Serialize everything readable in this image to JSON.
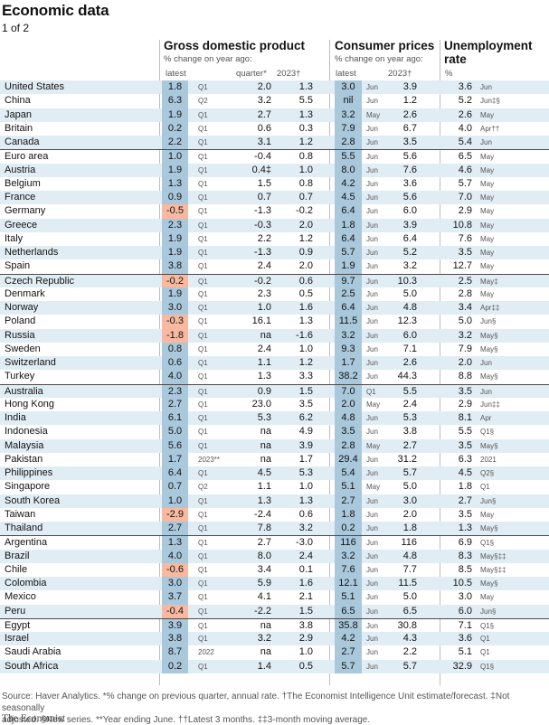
{
  "title": "Economic data",
  "page_indicator": "1 of 2",
  "headers": {
    "gdp": {
      "title": "Gross domestic product",
      "subtitle": "% change on year ago:",
      "col_latest": "latest",
      "col_quarter": "quarter*",
      "col_year": "2023†"
    },
    "cpi": {
      "title": "Consumer prices",
      "subtitle": "% change on year ago:",
      "col_latest": "latest",
      "col_year": "2023†"
    },
    "unemp": {
      "title": "Unemployment",
      "title2": "rate",
      "unit": "%"
    }
  },
  "rows": [
    {
      "country": "United States",
      "gdp": "1.8",
      "gdp_p": "Q1",
      "gdp_q": "2.0",
      "gdp_y": "1.3",
      "cp": "3.0",
      "cp_p": "Jun",
      "cp_y": "3.9",
      "un": "3.6",
      "un_p": "Jun",
      "neg": false
    },
    {
      "country": "China",
      "gdp": "6.3",
      "gdp_p": "Q2",
      "gdp_q": "3.2",
      "gdp_y": "5.5",
      "cp": "nil",
      "cp_p": "Jun",
      "cp_y": "1.2",
      "un": "5.2",
      "un_p": "Jun‡§",
      "neg": false
    },
    {
      "country": "Japan",
      "gdp": "1.9",
      "gdp_p": "Q1",
      "gdp_q": "2.7",
      "gdp_y": "1.3",
      "cp": "3.2",
      "cp_p": "May",
      "cp_y": "2.6",
      "un": "2.6",
      "un_p": "May",
      "neg": false
    },
    {
      "country": "Britain",
      "gdp": "0.2",
      "gdp_p": "Q1",
      "gdp_q": "0.6",
      "gdp_y": "0.3",
      "cp": "7.9",
      "cp_p": "Jun",
      "cp_y": "6.7",
      "un": "4.0",
      "un_p": "Apr††",
      "neg": false
    },
    {
      "country": "Canada",
      "gdp": "2.2",
      "gdp_p": "Q1",
      "gdp_q": "3.1",
      "gdp_y": "1.2",
      "cp": "2.8",
      "cp_p": "Jun",
      "cp_y": "3.5",
      "un": "5.4",
      "un_p": "Jun",
      "neg": false
    },
    {
      "country": "Euro area",
      "gdp": "1.0",
      "gdp_p": "Q1",
      "gdp_q": "-0.4",
      "gdp_y": "0.8",
      "cp": "5.5",
      "cp_p": "Jun",
      "cp_y": "5.6",
      "un": "6.5",
      "un_p": "May",
      "neg": false
    },
    {
      "country": "Austria",
      "gdp": "1.9",
      "gdp_p": "Q1",
      "gdp_q": "0.4‡",
      "gdp_y": "1.0",
      "cp": "8.0",
      "cp_p": "Jun",
      "cp_y": "7.6",
      "un": "4.6",
      "un_p": "May",
      "neg": false
    },
    {
      "country": "Belgium",
      "gdp": "1.3",
      "gdp_p": "Q1",
      "gdp_q": "1.5",
      "gdp_y": "0.8",
      "cp": "4.2",
      "cp_p": "Jun",
      "cp_y": "3.6",
      "un": "5.7",
      "un_p": "May",
      "neg": false
    },
    {
      "country": "France",
      "gdp": "0.9",
      "gdp_p": "Q1",
      "gdp_q": "0.7",
      "gdp_y": "0.7",
      "cp": "4.5",
      "cp_p": "Jun",
      "cp_y": "5.6",
      "un": "7.0",
      "un_p": "May",
      "neg": false
    },
    {
      "country": "Germany",
      "gdp": "-0.5",
      "gdp_p": "Q1",
      "gdp_q": "-1.3",
      "gdp_y": "-0.2",
      "cp": "6.4",
      "cp_p": "Jun",
      "cp_y": "6.0",
      "un": "2.9",
      "un_p": "May",
      "neg": true
    },
    {
      "country": "Greece",
      "gdp": "2.3",
      "gdp_p": "Q1",
      "gdp_q": "-0.3",
      "gdp_y": "2.0",
      "cp": "1.8",
      "cp_p": "Jun",
      "cp_y": "3.9",
      "un": "10.8",
      "un_p": "May",
      "neg": false
    },
    {
      "country": "Italy",
      "gdp": "1.9",
      "gdp_p": "Q1",
      "gdp_q": "2.2",
      "gdp_y": "1.2",
      "cp": "6.4",
      "cp_p": "Jun",
      "cp_y": "6.4",
      "un": "7.6",
      "un_p": "May",
      "neg": false
    },
    {
      "country": "Netherlands",
      "gdp": "1.9",
      "gdp_p": "Q1",
      "gdp_q": "-1.3",
      "gdp_y": "0.9",
      "cp": "5.7",
      "cp_p": "Jun",
      "cp_y": "5.2",
      "un": "3.5",
      "un_p": "May",
      "neg": false
    },
    {
      "country": "Spain",
      "gdp": "3.8",
      "gdp_p": "Q1",
      "gdp_q": "2.4",
      "gdp_y": "2.0",
      "cp": "1.9",
      "cp_p": "Jun",
      "cp_y": "3.2",
      "un": "12.7",
      "un_p": "May",
      "neg": false
    },
    {
      "country": "Czech Republic",
      "gdp": "-0.2",
      "gdp_p": "Q1",
      "gdp_q": "-0.2",
      "gdp_y": "0.6",
      "cp": "9.7",
      "cp_p": "Jun",
      "cp_y": "10.3",
      "un": "2.5",
      "un_p": "May‡",
      "neg": true
    },
    {
      "country": "Denmark",
      "gdp": "1.9",
      "gdp_p": "Q1",
      "gdp_q": "2.3",
      "gdp_y": "0.5",
      "cp": "2.5",
      "cp_p": "Jun",
      "cp_y": "5.0",
      "un": "2.8",
      "un_p": "May",
      "neg": false
    },
    {
      "country": "Norway",
      "gdp": "3.0",
      "gdp_p": "Q1",
      "gdp_q": "1.0",
      "gdp_y": "1.6",
      "cp": "6.4",
      "cp_p": "Jun",
      "cp_y": "4.8",
      "un": "3.4",
      "un_p": "Apr‡‡",
      "neg": false
    },
    {
      "country": "Poland",
      "gdp": "-0.3",
      "gdp_p": "Q1",
      "gdp_q": "16.1",
      "gdp_y": "1.3",
      "cp": "11.5",
      "cp_p": "Jun",
      "cp_y": "12.3",
      "un": "5.0",
      "un_p": "Jun§",
      "neg": true
    },
    {
      "country": "Russia",
      "gdp": "-1.8",
      "gdp_p": "Q1",
      "gdp_q": "na",
      "gdp_y": "-1.6",
      "cp": "3.2",
      "cp_p": "Jun",
      "cp_y": "6.0",
      "un": "3.2",
      "un_p": "May§",
      "neg": true
    },
    {
      "country": "Sweden",
      "gdp": "0.8",
      "gdp_p": "Q1",
      "gdp_q": "2.4",
      "gdp_y": "1.0",
      "cp": "9.3",
      "cp_p": "Jun",
      "cp_y": "7.1",
      "un": "7.9",
      "un_p": "May§",
      "neg": false
    },
    {
      "country": "Switzerland",
      "gdp": "0.6",
      "gdp_p": "Q1",
      "gdp_q": "1.1",
      "gdp_y": "1.2",
      "cp": "1.7",
      "cp_p": "Jun",
      "cp_y": "2.6",
      "un": "2.0",
      "un_p": "Jun",
      "neg": false
    },
    {
      "country": "Turkey",
      "gdp": "4.0",
      "gdp_p": "Q1",
      "gdp_q": "1.3",
      "gdp_y": "3.3",
      "cp": "38.2",
      "cp_p": "Jun",
      "cp_y": "44.3",
      "un": "8.8",
      "un_p": "May§",
      "neg": false
    },
    {
      "country": "Australia",
      "gdp": "2.3",
      "gdp_p": "Q1",
      "gdp_q": "0.9",
      "gdp_y": "1.5",
      "cp": "7.0",
      "cp_p": "Q1",
      "cp_y": "5.5",
      "un": "3.5",
      "un_p": "Jun",
      "neg": false
    },
    {
      "country": "Hong Kong",
      "gdp": "2.7",
      "gdp_p": "Q1",
      "gdp_q": "23.0",
      "gdp_y": "3.5",
      "cp": "2.0",
      "cp_p": "May",
      "cp_y": "2.4",
      "un": "2.9",
      "un_p": "Jun‡‡",
      "neg": false
    },
    {
      "country": "India",
      "gdp": "6.1",
      "gdp_p": "Q1",
      "gdp_q": "5.3",
      "gdp_y": "6.2",
      "cp": "4.8",
      "cp_p": "Jun",
      "cp_y": "5.3",
      "un": "8.1",
      "un_p": "Apr",
      "neg": false
    },
    {
      "country": "Indonesia",
      "gdp": "5.0",
      "gdp_p": "Q1",
      "gdp_q": "na",
      "gdp_y": "4.9",
      "cp": "3.5",
      "cp_p": "Jun",
      "cp_y": "3.8",
      "un": "5.5",
      "un_p": "Q1§",
      "neg": false
    },
    {
      "country": "Malaysia",
      "gdp": "5.6",
      "gdp_p": "Q1",
      "gdp_q": "na",
      "gdp_y": "3.9",
      "cp": "2.8",
      "cp_p": "May",
      "cp_y": "2.7",
      "un": "3.5",
      "un_p": "May§",
      "neg": false
    },
    {
      "country": "Pakistan",
      "gdp": "1.7",
      "gdp_p": "2023**",
      "gdp_q": "na",
      "gdp_y": "1.7",
      "cp": "29.4",
      "cp_p": "Jun",
      "cp_y": "31.2",
      "un": "6.3",
      "un_p": "2021",
      "neg": false
    },
    {
      "country": "Philippines",
      "gdp": "6.4",
      "gdp_p": "Q1",
      "gdp_q": "4.5",
      "gdp_y": "5.3",
      "cp": "5.4",
      "cp_p": "Jun",
      "cp_y": "5.7",
      "un": "4.5",
      "un_p": "Q2§",
      "neg": false
    },
    {
      "country": "Singapore",
      "gdp": "0.7",
      "gdp_p": "Q2",
      "gdp_q": "1.1",
      "gdp_y": "1.0",
      "cp": "5.1",
      "cp_p": "May",
      "cp_y": "5.0",
      "un": "1.8",
      "un_p": "Q1",
      "neg": false
    },
    {
      "country": "South Korea",
      "gdp": "1.0",
      "gdp_p": "Q1",
      "gdp_q": "1.3",
      "gdp_y": "1.3",
      "cp": "2.7",
      "cp_p": "Jun",
      "cp_y": "3.0",
      "un": "2.7",
      "un_p": "Jun§",
      "neg": false
    },
    {
      "country": "Taiwan",
      "gdp": "-2.9",
      "gdp_p": "Q1",
      "gdp_q": "-2.4",
      "gdp_y": "0.6",
      "cp": "1.8",
      "cp_p": "Jun",
      "cp_y": "2.0",
      "un": "3.5",
      "un_p": "May",
      "neg": true
    },
    {
      "country": "Thailand",
      "gdp": "2.7",
      "gdp_p": "Q1",
      "gdp_q": "7.8",
      "gdp_y": "3.2",
      "cp": "0.2",
      "cp_p": "Jun",
      "cp_y": "1.8",
      "un": "1.3",
      "un_p": "May§",
      "neg": false
    },
    {
      "country": "Argentina",
      "gdp": "1.3",
      "gdp_p": "Q1",
      "gdp_q": "2.7",
      "gdp_y": "-3.0",
      "cp": "116",
      "cp_p": "Jun",
      "cp_y": "116",
      "un": "6.9",
      "un_p": "Q1§",
      "neg": false
    },
    {
      "country": "Brazil",
      "gdp": "4.0",
      "gdp_p": "Q1",
      "gdp_q": "8.0",
      "gdp_y": "2.4",
      "cp": "3.2",
      "cp_p": "Jun",
      "cp_y": "4.8",
      "un": "8.3",
      "un_p": "May§‡‡",
      "neg": false
    },
    {
      "country": "Chile",
      "gdp": "-0.6",
      "gdp_p": "Q1",
      "gdp_q": "3.4",
      "gdp_y": "0.1",
      "cp": "7.6",
      "cp_p": "Jun",
      "cp_y": "7.7",
      "un": "8.5",
      "un_p": "May§‡‡",
      "neg": true
    },
    {
      "country": "Colombia",
      "gdp": "3.0",
      "gdp_p": "Q1",
      "gdp_q": "5.9",
      "gdp_y": "1.6",
      "cp": "12.1",
      "cp_p": "Jun",
      "cp_y": "11.5",
      "un": "10.5",
      "un_p": "May§",
      "neg": false
    },
    {
      "country": "Mexico",
      "gdp": "3.7",
      "gdp_p": "Q1",
      "gdp_q": "4.1",
      "gdp_y": "2.1",
      "cp": "5.1",
      "cp_p": "Jun",
      "cp_y": "5.0",
      "un": "3.0",
      "un_p": "May",
      "neg": false
    },
    {
      "country": "Peru",
      "gdp": "-0.4",
      "gdp_p": "Q1",
      "gdp_q": "-2.2",
      "gdp_y": "1.5",
      "cp": "6.5",
      "cp_p": "Jun",
      "cp_y": "6.5",
      "un": "6.0",
      "un_p": "Jun§",
      "neg": true
    },
    {
      "country": "Egypt",
      "gdp": "3.9",
      "gdp_p": "Q1",
      "gdp_q": "na",
      "gdp_y": "3.8",
      "cp": "35.8",
      "cp_p": "Jun",
      "cp_y": "30.8",
      "un": "7.1",
      "un_p": "Q1§",
      "neg": false
    },
    {
      "country": "Israel",
      "gdp": "3.8",
      "gdp_p": "Q1",
      "gdp_q": "3.2",
      "gdp_y": "2.9",
      "cp": "4.2",
      "cp_p": "Jun",
      "cp_y": "4.3",
      "un": "3.6",
      "un_p": "Q1",
      "neg": false
    },
    {
      "country": "Saudi Arabia",
      "gdp": "8.7",
      "gdp_p": "2022",
      "gdp_q": "na",
      "gdp_y": "1.0",
      "cp": "2.7",
      "cp_p": "Jun",
      "cp_y": "2.2",
      "un": "5.1",
      "un_p": "Q1",
      "neg": false
    },
    {
      "country": "South Africa",
      "gdp": "0.2",
      "gdp_p": "Q1",
      "gdp_q": "1.4",
      "gdp_y": "0.5",
      "cp": "5.7",
      "cp_p": "Jun",
      "cp_y": "5.7",
      "un": "32.9",
      "un_p": "Q1§",
      "neg": false
    }
  ],
  "footnote_line1": "Source: Haver Analytics.  *% change on previous quarter, annual rate. †The Economist Intelligence Unit estimate/forecast. ‡Not seasonally",
  "footnote_line2": "adjusted. §New series. **Year ending June. ††Latest 3 months. ‡‡3-month moving average.",
  "brand": "The Economist"
}
